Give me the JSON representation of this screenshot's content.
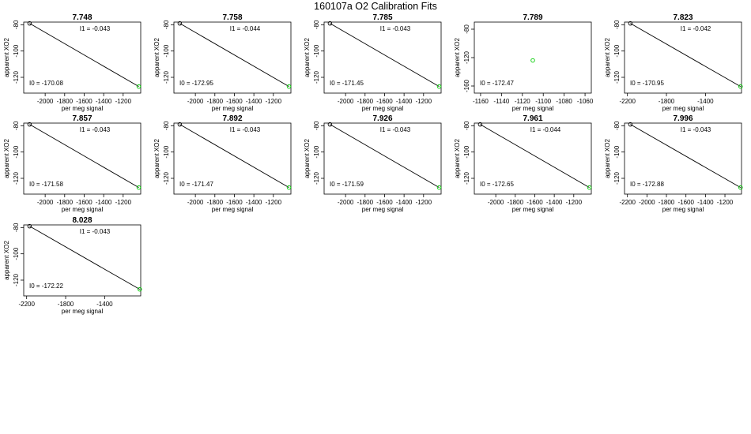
{
  "suptitle": "160107a   O2 Calibration Fits",
  "colors": {
    "first_point": "#000000",
    "other_points": "#00cc00",
    "fit_line": "#000000"
  },
  "chart_data": [
    {
      "type": "scatter",
      "title": "7.748",
      "xlabel": "per meg signal",
      "ylabel": "apparent XO2",
      "xlim": [
        -2220,
        -1020
      ],
      "ylim": [
        -132,
        -78
      ],
      "xticks": [
        -2000,
        -1800,
        -1600,
        -1400,
        -1200
      ],
      "yticks": [
        -80,
        -100,
        -120
      ],
      "points": [
        [
          -2160,
          -79
        ],
        [
          -1040,
          -127
        ]
      ],
      "fit": {
        "I0": "-170.08",
        "I1": "-0.043"
      }
    },
    {
      "type": "scatter",
      "title": "7.758",
      "xlabel": "per meg signal",
      "ylabel": "apparent XO2",
      "xlim": [
        -2220,
        -1020
      ],
      "ylim": [
        -132,
        -78
      ],
      "xticks": [
        -2000,
        -1800,
        -1600,
        -1400,
        -1200
      ],
      "yticks": [
        -80,
        -100,
        -120
      ],
      "points": [
        [
          -2160,
          -79
        ],
        [
          -1040,
          -127
        ]
      ],
      "fit": {
        "I0": "-172.95",
        "I1": "-0.044"
      }
    },
    {
      "type": "scatter",
      "title": "7.785",
      "xlabel": "per meg signal",
      "ylabel": "apparent XO2",
      "xlim": [
        -2220,
        -1020
      ],
      "ylim": [
        -132,
        -78
      ],
      "xticks": [
        -2000,
        -1800,
        -1600,
        -1400,
        -1200
      ],
      "yticks": [
        -80,
        -100,
        -120
      ],
      "points": [
        [
          -2160,
          -79
        ],
        [
          -1040,
          -127
        ]
      ],
      "fit": {
        "I0": "-171.45",
        "I1": "-0.043"
      }
    },
    {
      "type": "scatter",
      "title": "7.789",
      "xlabel": "per meg signal",
      "ylabel": "apparent XO2",
      "xlim": [
        -1166,
        -1054
      ],
      "ylim": [
        -170,
        -70
      ],
      "xticks": [
        -1160,
        -1140,
        -1120,
        -1100,
        -1080,
        -1060
      ],
      "yticks": [
        -80,
        -120,
        -160
      ],
      "points": [
        [
          -1110,
          -124
        ]
      ],
      "fit": {
        "I0": "-172.47",
        "I1": ""
      }
    },
    {
      "type": "scatter",
      "title": "7.823",
      "xlabel": "per meg signal",
      "ylabel": "apparent XO2",
      "xlim": [
        -2230,
        -1030
      ],
      "ylim": [
        -132,
        -78
      ],
      "xticks": [
        -2200,
        -1800,
        -1400
      ],
      "yticks": [
        -80,
        -100,
        -120
      ],
      "points": [
        [
          -2170,
          -79
        ],
        [
          -1040,
          -127
        ]
      ],
      "fit": {
        "I0": "-170.95",
        "I1": "-0.042"
      }
    },
    {
      "type": "scatter",
      "title": "7.857",
      "xlabel": "per meg signal",
      "ylabel": "apparent XO2",
      "xlim": [
        -2220,
        -1020
      ],
      "ylim": [
        -132,
        -78
      ],
      "xticks": [
        -2000,
        -1800,
        -1600,
        -1400,
        -1200
      ],
      "yticks": [
        -80,
        -100,
        -120
      ],
      "points": [
        [
          -2160,
          -79
        ],
        [
          -1040,
          -127
        ]
      ],
      "fit": {
        "I0": "-171.58",
        "I1": "-0.043"
      }
    },
    {
      "type": "scatter",
      "title": "7.892",
      "xlabel": "per meg signal",
      "ylabel": "apparent XO2",
      "xlim": [
        -2220,
        -1020
      ],
      "ylim": [
        -132,
        -78
      ],
      "xticks": [
        -2000,
        -1800,
        -1600,
        -1400,
        -1200
      ],
      "yticks": [
        -80,
        -100,
        -120
      ],
      "points": [
        [
          -2160,
          -79
        ],
        [
          -1040,
          -127
        ]
      ],
      "fit": {
        "I0": "-171.47",
        "I1": "-0.043"
      }
    },
    {
      "type": "scatter",
      "title": "7.926",
      "xlabel": "per meg signal",
      "ylabel": "apparent XO2",
      "xlim": [
        -2220,
        -1020
      ],
      "ylim": [
        -132,
        -78
      ],
      "xticks": [
        -2000,
        -1800,
        -1600,
        -1400,
        -1200
      ],
      "yticks": [
        -80,
        -100,
        -120
      ],
      "points": [
        [
          -2160,
          -79
        ],
        [
          -1040,
          -127
        ]
      ],
      "fit": {
        "I0": "-171.59",
        "I1": "-0.043"
      }
    },
    {
      "type": "scatter",
      "title": "7.961",
      "xlabel": "per meg signal",
      "ylabel": "apparent XO2",
      "xlim": [
        -2220,
        -1020
      ],
      "ylim": [
        -132,
        -78
      ],
      "xticks": [
        -2000,
        -1800,
        -1600,
        -1400,
        -1200
      ],
      "yticks": [
        -80,
        -100,
        -120
      ],
      "points": [
        [
          -2160,
          -79
        ],
        [
          -1040,
          -127
        ]
      ],
      "fit": {
        "I0": "-172.65",
        "I1": "-0.044"
      }
    },
    {
      "type": "scatter",
      "title": "7.996",
      "xlabel": "per meg signal",
      "ylabel": "apparent XO2",
      "xlim": [
        -2230,
        -1030
      ],
      "ylim": [
        -132,
        -78
      ],
      "xticks": [
        -2200,
        -2000,
        -1800,
        -1600,
        -1400,
        -1200
      ],
      "yticks": [
        -80,
        -100,
        -120
      ],
      "points": [
        [
          -2170,
          -79
        ],
        [
          -1040,
          -127
        ]
      ],
      "fit": {
        "I0": "-172.88",
        "I1": "-0.043"
      }
    },
    {
      "type": "scatter",
      "title": "8.028",
      "xlabel": "per meg signal",
      "ylabel": "apparent XO2",
      "xlim": [
        -2230,
        -1030
      ],
      "ylim": [
        -132,
        -78
      ],
      "xticks": [
        -2200,
        -1800,
        -1400
      ],
      "yticks": [
        -80,
        -100,
        -120
      ],
      "points": [
        [
          -2170,
          -79
        ],
        [
          -1040,
          -127
        ]
      ],
      "fit": {
        "I0": "-172.22",
        "I1": "-0.043"
      }
    }
  ]
}
